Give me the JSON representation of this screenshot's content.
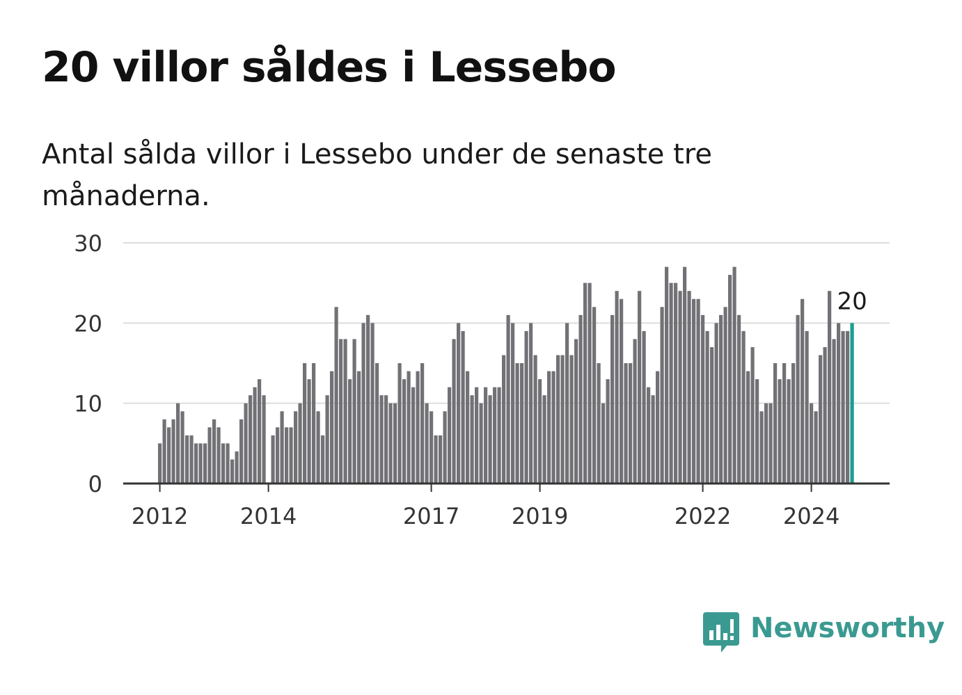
{
  "title": "20 villor såldes i Lessebo",
  "subtitle": "Antal sålda villor i Lessebo under de senaste tre månaderna.",
  "brand": {
    "name": "Newsworthy",
    "icon": "newsworthy-logo-icon",
    "color": "#3a9a91"
  },
  "colors": {
    "bar": "#727176",
    "highlight": "#1a9e8f",
    "grid": "#dddddd",
    "axis": "#333333"
  },
  "chart_data": {
    "type": "bar",
    "x_start": "2012-01",
    "x_step": "month",
    "ylim": [
      0,
      30
    ],
    "yticks": [
      0,
      10,
      20,
      30
    ],
    "xticks": [
      {
        "label": "2012",
        "index": 0
      },
      {
        "label": "2014",
        "index": 24
      },
      {
        "label": "2017",
        "index": 60
      },
      {
        "label": "2019",
        "index": 84
      },
      {
        "label": "2022",
        "index": 120
      },
      {
        "label": "2024",
        "index": 144
      }
    ],
    "grid": true,
    "legend": false,
    "values": [
      5,
      8,
      7,
      8,
      10,
      9,
      6,
      6,
      5,
      5,
      5,
      7,
      8,
      7,
      5,
      5,
      3,
      4,
      8,
      10,
      11,
      12,
      13,
      11,
      0,
      6,
      7,
      9,
      7,
      7,
      9,
      10,
      15,
      13,
      15,
      9,
      6,
      11,
      14,
      22,
      18,
      18,
      13,
      18,
      14,
      20,
      21,
      20,
      15,
      11,
      11,
      10,
      10,
      15,
      13,
      14,
      12,
      14,
      15,
      10,
      9,
      6,
      6,
      9,
      12,
      18,
      20,
      19,
      14,
      11,
      12,
      10,
      12,
      11,
      12,
      12,
      16,
      21,
      20,
      15,
      15,
      19,
      20,
      16,
      13,
      11,
      14,
      14,
      16,
      16,
      20,
      16,
      18,
      21,
      25,
      25,
      22,
      15,
      10,
      13,
      21,
      24,
      23,
      15,
      15,
      18,
      24,
      19,
      12,
      11,
      14,
      22,
      27,
      25,
      25,
      24,
      27,
      24,
      23,
      23,
      21,
      19,
      17,
      20,
      21,
      22,
      26,
      27,
      21,
      19,
      14,
      17,
      13,
      9,
      10,
      10,
      15,
      13,
      15,
      13,
      15,
      21,
      23,
      19,
      10,
      9,
      16,
      17,
      24,
      18,
      20,
      19,
      19,
      20
    ],
    "highlight_index": 153,
    "highlight_label": "20"
  }
}
